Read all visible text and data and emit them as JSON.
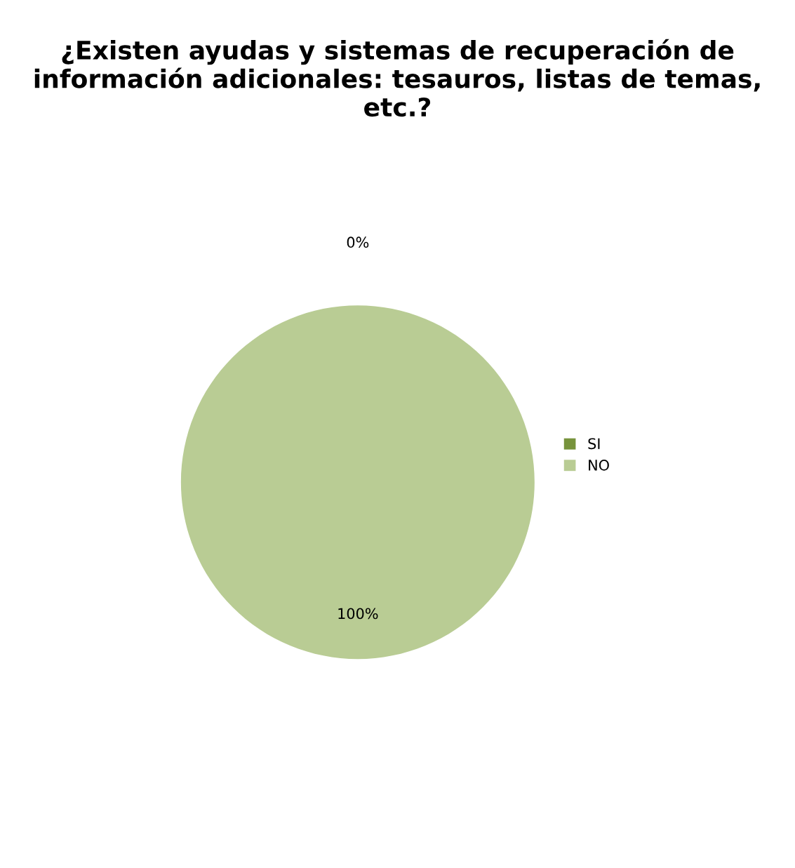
{
  "chart_data": {
    "type": "pie",
    "title": "¿Existen ayudas y sistemas de recuperación de información adicionales: tesauros, listas de temas, etc.?",
    "categories": [
      "SI",
      "NO"
    ],
    "values": [
      0,
      100
    ],
    "colors": [
      "#77933c",
      "#b9cc94"
    ],
    "value_labels": [
      "0%",
      "100%"
    ],
    "legend": "right"
  }
}
